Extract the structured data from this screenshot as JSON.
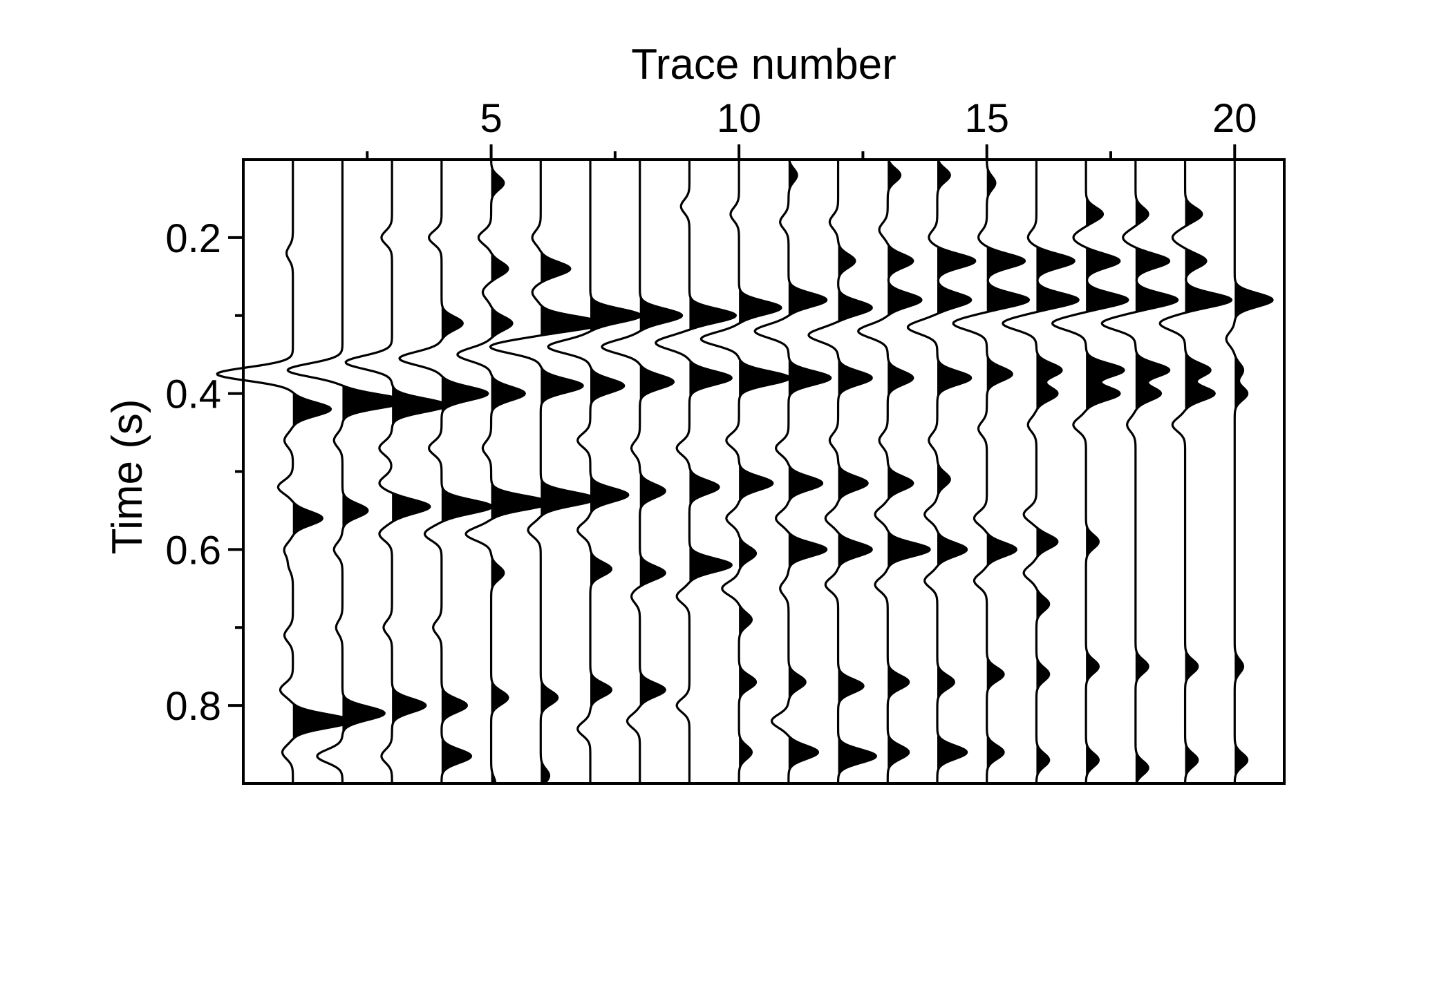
{
  "chart_data": {
    "type": "seismic-wiggle",
    "title": "",
    "xlabel": "Trace number",
    "ylabel": "Time (s)",
    "x_axis_position": "top",
    "xlim": [
      0,
      21
    ],
    "ylim": [
      0.9,
      0.1
    ],
    "x_ticks": [
      5,
      10,
      15,
      20
    ],
    "x_minor_ticks": [
      2.5,
      7.5,
      12.5,
      17.5
    ],
    "y_ticks": [
      0.2,
      0.4,
      0.6,
      0.8
    ],
    "y_tick_labels": [
      "0.2",
      "0.4",
      "0.6",
      "0.8"
    ],
    "y_minor_ticks": [
      0.3,
      0.5,
      0.7
    ],
    "grid": false,
    "fill": "positive lobes filled black",
    "line_color": "#000000",
    "traces": [
      {
        "trace": 1,
        "events": [
          [
            0.22,
            -0.15
          ],
          [
            0.375,
            -1.8
          ],
          [
            0.42,
            0.9
          ],
          [
            0.46,
            -0.2
          ],
          [
            0.52,
            -0.35
          ],
          [
            0.56,
            0.7
          ],
          [
            0.6,
            -0.2
          ],
          [
            0.62,
            -0.1
          ],
          [
            0.71,
            -0.2
          ],
          [
            0.78,
            -0.3
          ],
          [
            0.82,
            1.4
          ],
          [
            0.86,
            -0.25
          ]
        ]
      },
      {
        "trace": 2,
        "events": [
          [
            0.37,
            -1.3
          ],
          [
            0.41,
            1.5
          ],
          [
            0.46,
            -0.2
          ],
          [
            0.55,
            0.6
          ],
          [
            0.6,
            -0.2
          ],
          [
            0.7,
            -0.15
          ],
          [
            0.81,
            1.0
          ],
          [
            0.865,
            -0.6
          ]
        ]
      },
      {
        "trace": 3,
        "events": [
          [
            0.2,
            -0.25
          ],
          [
            0.36,
            -1.1
          ],
          [
            0.415,
            1.3
          ],
          [
            0.47,
            -0.3
          ],
          [
            0.515,
            -0.3
          ],
          [
            0.545,
            0.9
          ],
          [
            0.58,
            -0.3
          ],
          [
            0.7,
            -0.2
          ],
          [
            0.8,
            0.8
          ],
          [
            0.865,
            -0.25
          ]
        ]
      },
      {
        "trace": 4,
        "events": [
          [
            0.2,
            -0.3
          ],
          [
            0.31,
            0.5
          ],
          [
            0.355,
            -1.0
          ],
          [
            0.4,
            1.1
          ],
          [
            0.47,
            -0.3
          ],
          [
            0.545,
            1.2
          ],
          [
            0.58,
            -0.4
          ],
          [
            0.7,
            -0.2
          ],
          [
            0.8,
            0.6
          ],
          [
            0.865,
            0.7
          ]
        ]
      },
      {
        "trace": 5,
        "events": [
          [
            0.13,
            0.3
          ],
          [
            0.2,
            -0.3
          ],
          [
            0.24,
            0.4
          ],
          [
            0.27,
            -0.2
          ],
          [
            0.31,
            0.5
          ],
          [
            0.35,
            -0.8
          ],
          [
            0.4,
            0.8
          ],
          [
            0.47,
            -0.2
          ],
          [
            0.54,
            1.4
          ],
          [
            0.58,
            -0.6
          ],
          [
            0.63,
            0.3
          ],
          [
            0.79,
            0.4
          ],
          [
            0.9,
            0.1
          ]
        ]
      },
      {
        "trace": 6,
        "events": [
          [
            0.2,
            -0.2
          ],
          [
            0.24,
            0.7
          ],
          [
            0.27,
            -0.2
          ],
          [
            0.31,
            1.5
          ],
          [
            0.34,
            -1.2
          ],
          [
            0.39,
            1.0
          ],
          [
            0.535,
            1.3
          ],
          [
            0.575,
            -0.3
          ],
          [
            0.79,
            0.4
          ],
          [
            0.89,
            0.2
          ]
        ]
      },
      {
        "trace": 7,
        "events": [
          [
            0.3,
            1.2
          ],
          [
            0.34,
            -1.0
          ],
          [
            0.39,
            0.8
          ],
          [
            0.46,
            -0.3
          ],
          [
            0.53,
            0.9
          ],
          [
            0.575,
            -0.3
          ],
          [
            0.625,
            0.5
          ],
          [
            0.78,
            0.5
          ],
          [
            0.83,
            -0.3
          ]
        ]
      },
      {
        "trace": 8,
        "events": [
          [
            0.3,
            1.0
          ],
          [
            0.34,
            -0.9
          ],
          [
            0.385,
            0.8
          ],
          [
            0.47,
            -0.2
          ],
          [
            0.525,
            0.6
          ],
          [
            0.63,
            0.6
          ],
          [
            0.66,
            -0.2
          ],
          [
            0.78,
            0.6
          ],
          [
            0.82,
            -0.3
          ]
        ]
      },
      {
        "trace": 9,
        "events": [
          [
            0.16,
            -0.2
          ],
          [
            0.3,
            1.1
          ],
          [
            0.335,
            -0.8
          ],
          [
            0.38,
            1.0
          ],
          [
            0.47,
            -0.3
          ],
          [
            0.52,
            0.7
          ],
          [
            0.62,
            1.0
          ],
          [
            0.66,
            -0.3
          ],
          [
            0.8,
            -0.3
          ]
        ]
      },
      {
        "trace": 10,
        "events": [
          [
            0.17,
            -0.2
          ],
          [
            0.29,
            1.0
          ],
          [
            0.33,
            -0.9
          ],
          [
            0.38,
            1.2
          ],
          [
            0.46,
            -0.3
          ],
          [
            0.515,
            0.8
          ],
          [
            0.56,
            -0.3
          ],
          [
            0.605,
            0.4
          ],
          [
            0.65,
            -0.4
          ],
          [
            0.69,
            0.3
          ],
          [
            0.77,
            0.4
          ],
          [
            0.86,
            0.3
          ]
        ]
      },
      {
        "trace": 11,
        "events": [
          [
            0.12,
            0.2
          ],
          [
            0.18,
            -0.2
          ],
          [
            0.28,
            0.9
          ],
          [
            0.32,
            -0.8
          ],
          [
            0.38,
            1.0
          ],
          [
            0.47,
            -0.3
          ],
          [
            0.515,
            0.8
          ],
          [
            0.56,
            -0.3
          ],
          [
            0.6,
            0.9
          ],
          [
            0.65,
            -0.2
          ],
          [
            0.77,
            0.4
          ],
          [
            0.82,
            -0.4
          ],
          [
            0.86,
            0.7
          ]
        ]
      },
      {
        "trace": 12,
        "events": [
          [
            0.18,
            -0.2
          ],
          [
            0.23,
            0.4
          ],
          [
            0.29,
            0.8
          ],
          [
            0.325,
            -0.7
          ],
          [
            0.38,
            0.8
          ],
          [
            0.46,
            -0.2
          ],
          [
            0.515,
            0.7
          ],
          [
            0.56,
            -0.3
          ],
          [
            0.6,
            0.8
          ],
          [
            0.645,
            -0.3
          ],
          [
            0.775,
            0.6
          ],
          [
            0.865,
            0.9
          ]
        ]
      },
      {
        "trace": 13,
        "events": [
          [
            0.12,
            0.3
          ],
          [
            0.19,
            -0.2
          ],
          [
            0.23,
            0.6
          ],
          [
            0.28,
            0.8
          ],
          [
            0.32,
            -0.7
          ],
          [
            0.38,
            0.6
          ],
          [
            0.46,
            -0.2
          ],
          [
            0.515,
            0.6
          ],
          [
            0.555,
            -0.3
          ],
          [
            0.6,
            1.0
          ],
          [
            0.645,
            -0.3
          ],
          [
            0.77,
            0.5
          ],
          [
            0.86,
            0.5
          ]
        ]
      },
      {
        "trace": 14,
        "events": [
          [
            0.12,
            0.3
          ],
          [
            0.2,
            -0.2
          ],
          [
            0.23,
            0.9
          ],
          [
            0.28,
            0.8
          ],
          [
            0.315,
            -0.7
          ],
          [
            0.38,
            0.8
          ],
          [
            0.46,
            -0.2
          ],
          [
            0.51,
            0.3
          ],
          [
            0.555,
            -0.3
          ],
          [
            0.6,
            0.7
          ],
          [
            0.64,
            -0.3
          ],
          [
            0.77,
            0.4
          ],
          [
            0.86,
            0.7
          ]
        ]
      },
      {
        "trace": 15,
        "events": [
          [
            0.13,
            0.2
          ],
          [
            0.2,
            -0.2
          ],
          [
            0.23,
            0.9
          ],
          [
            0.28,
            1.0
          ],
          [
            0.31,
            -0.8
          ],
          [
            0.375,
            0.6
          ],
          [
            0.445,
            -0.2
          ],
          [
            0.56,
            -0.3
          ],
          [
            0.6,
            0.7
          ],
          [
            0.64,
            -0.3
          ],
          [
            0.76,
            0.4
          ],
          [
            0.86,
            0.4
          ]
        ]
      },
      {
        "trace": 16,
        "events": [
          [
            0.2,
            -0.2
          ],
          [
            0.23,
            0.9
          ],
          [
            0.28,
            1.0
          ],
          [
            0.31,
            -0.8
          ],
          [
            0.37,
            0.6
          ],
          [
            0.4,
            0.5
          ],
          [
            0.44,
            -0.2
          ],
          [
            0.555,
            -0.3
          ],
          [
            0.59,
            0.5
          ],
          [
            0.63,
            -0.3
          ],
          [
            0.67,
            0.3
          ],
          [
            0.76,
            0.3
          ],
          [
            0.87,
            0.3
          ]
        ]
      },
      {
        "trace": 17,
        "events": [
          [
            0.17,
            0.4
          ],
          [
            0.2,
            -0.3
          ],
          [
            0.23,
            0.8
          ],
          [
            0.28,
            1.0
          ],
          [
            0.31,
            -0.8
          ],
          [
            0.37,
            0.9
          ],
          [
            0.4,
            0.8
          ],
          [
            0.44,
            -0.3
          ],
          [
            0.59,
            0.3
          ],
          [
            0.75,
            0.3
          ],
          [
            0.87,
            0.3
          ]
        ]
      },
      {
        "trace": 18,
        "events": [
          [
            0.17,
            0.3
          ],
          [
            0.2,
            -0.3
          ],
          [
            0.23,
            0.8
          ],
          [
            0.28,
            1.0
          ],
          [
            0.31,
            -0.8
          ],
          [
            0.37,
            0.8
          ],
          [
            0.4,
            0.6
          ],
          [
            0.44,
            -0.2
          ],
          [
            0.75,
            0.3
          ],
          [
            0.88,
            0.3
          ]
        ]
      },
      {
        "trace": 19,
        "events": [
          [
            0.17,
            0.4
          ],
          [
            0.2,
            -0.3
          ],
          [
            0.23,
            0.5
          ],
          [
            0.28,
            1.1
          ],
          [
            0.31,
            -0.6
          ],
          [
            0.37,
            0.6
          ],
          [
            0.4,
            0.7
          ],
          [
            0.44,
            -0.3
          ],
          [
            0.75,
            0.3
          ],
          [
            0.87,
            0.3
          ]
        ]
      },
      {
        "trace": 20,
        "events": [
          [
            0.28,
            0.9
          ],
          [
            0.33,
            -0.2
          ],
          [
            0.37,
            0.2
          ],
          [
            0.4,
            0.3
          ],
          [
            0.75,
            0.2
          ],
          [
            0.87,
            0.3
          ]
        ]
      }
    ]
  }
}
